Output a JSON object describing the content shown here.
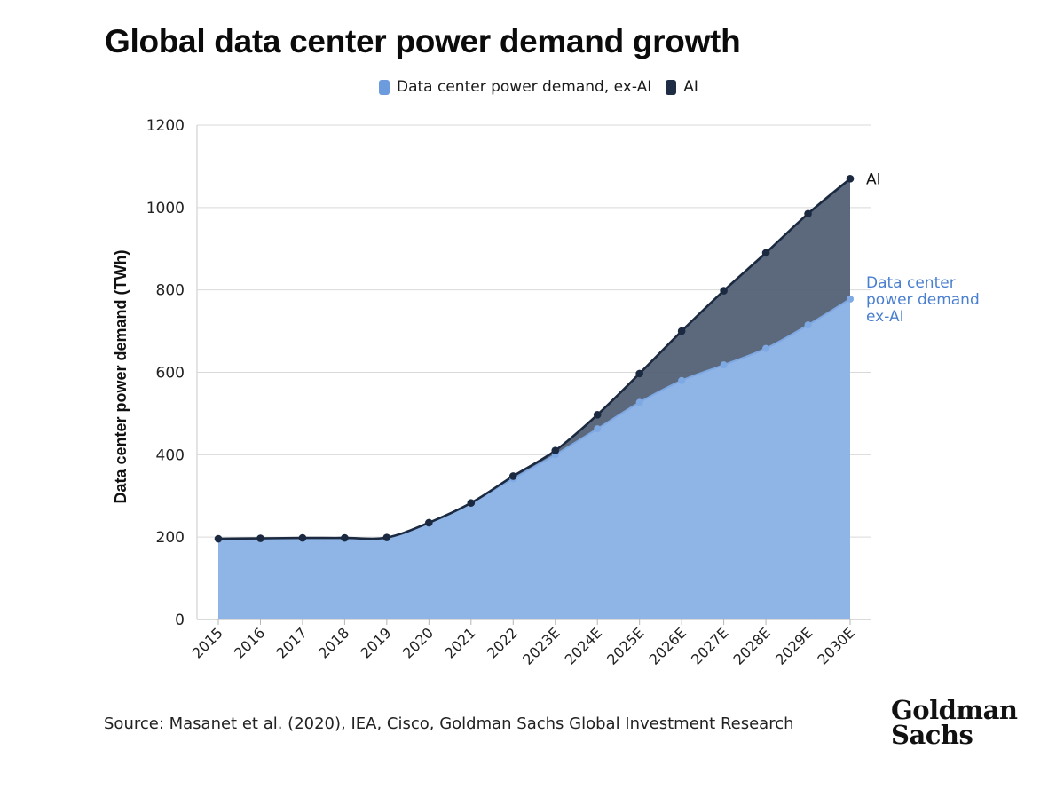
{
  "header": {
    "title": "Global data center power demand growth"
  },
  "legend": [
    {
      "label": "Data center power demand, ex-AI",
      "color": "#6d9cde"
    },
    {
      "label": "AI",
      "color": "#1e2d44"
    }
  ],
  "annotations": {
    "ai_label": "AI",
    "exai_label_lines": [
      "Data center",
      "power demand",
      "ex-AI"
    ]
  },
  "footer": {
    "source": "Source: Masanet et al. (2020), IEA, Cisco, Goldman Sachs Global Investment Research"
  },
  "brand": {
    "line1": "Goldman",
    "line2": "Sachs"
  },
  "chart_data": {
    "type": "area",
    "stacked": true,
    "title": "Global data center power demand growth",
    "ylabel": "Data center power demand (TWh)",
    "xlabel": "",
    "ylim": [
      0,
      1200
    ],
    "yticks": [
      0,
      200,
      400,
      600,
      800,
      1000,
      1200
    ],
    "grid": true,
    "legend_position": "top",
    "categories": [
      "2015",
      "2016",
      "2017",
      "2018",
      "2019",
      "2020",
      "2021",
      "2022",
      "2023E",
      "2024E",
      "2025E",
      "2026E",
      "2027E",
      "2028E",
      "2029E",
      "2030E"
    ],
    "series": [
      {
        "name": "Data center power demand, ex-AI",
        "color": "#8fb4e6",
        "values": [
          196,
          197,
          198,
          198,
          199,
          235,
          283,
          342,
          400,
          463,
          527,
          580,
          618,
          658,
          715,
          778
        ]
      },
      {
        "name": "AI",
        "color": "#4e5c72",
        "total_values": [
          196,
          197,
          198,
          198,
          199,
          235,
          283,
          348,
          410,
          497,
          597,
          700,
          798,
          890,
          985,
          1070
        ]
      }
    ]
  }
}
